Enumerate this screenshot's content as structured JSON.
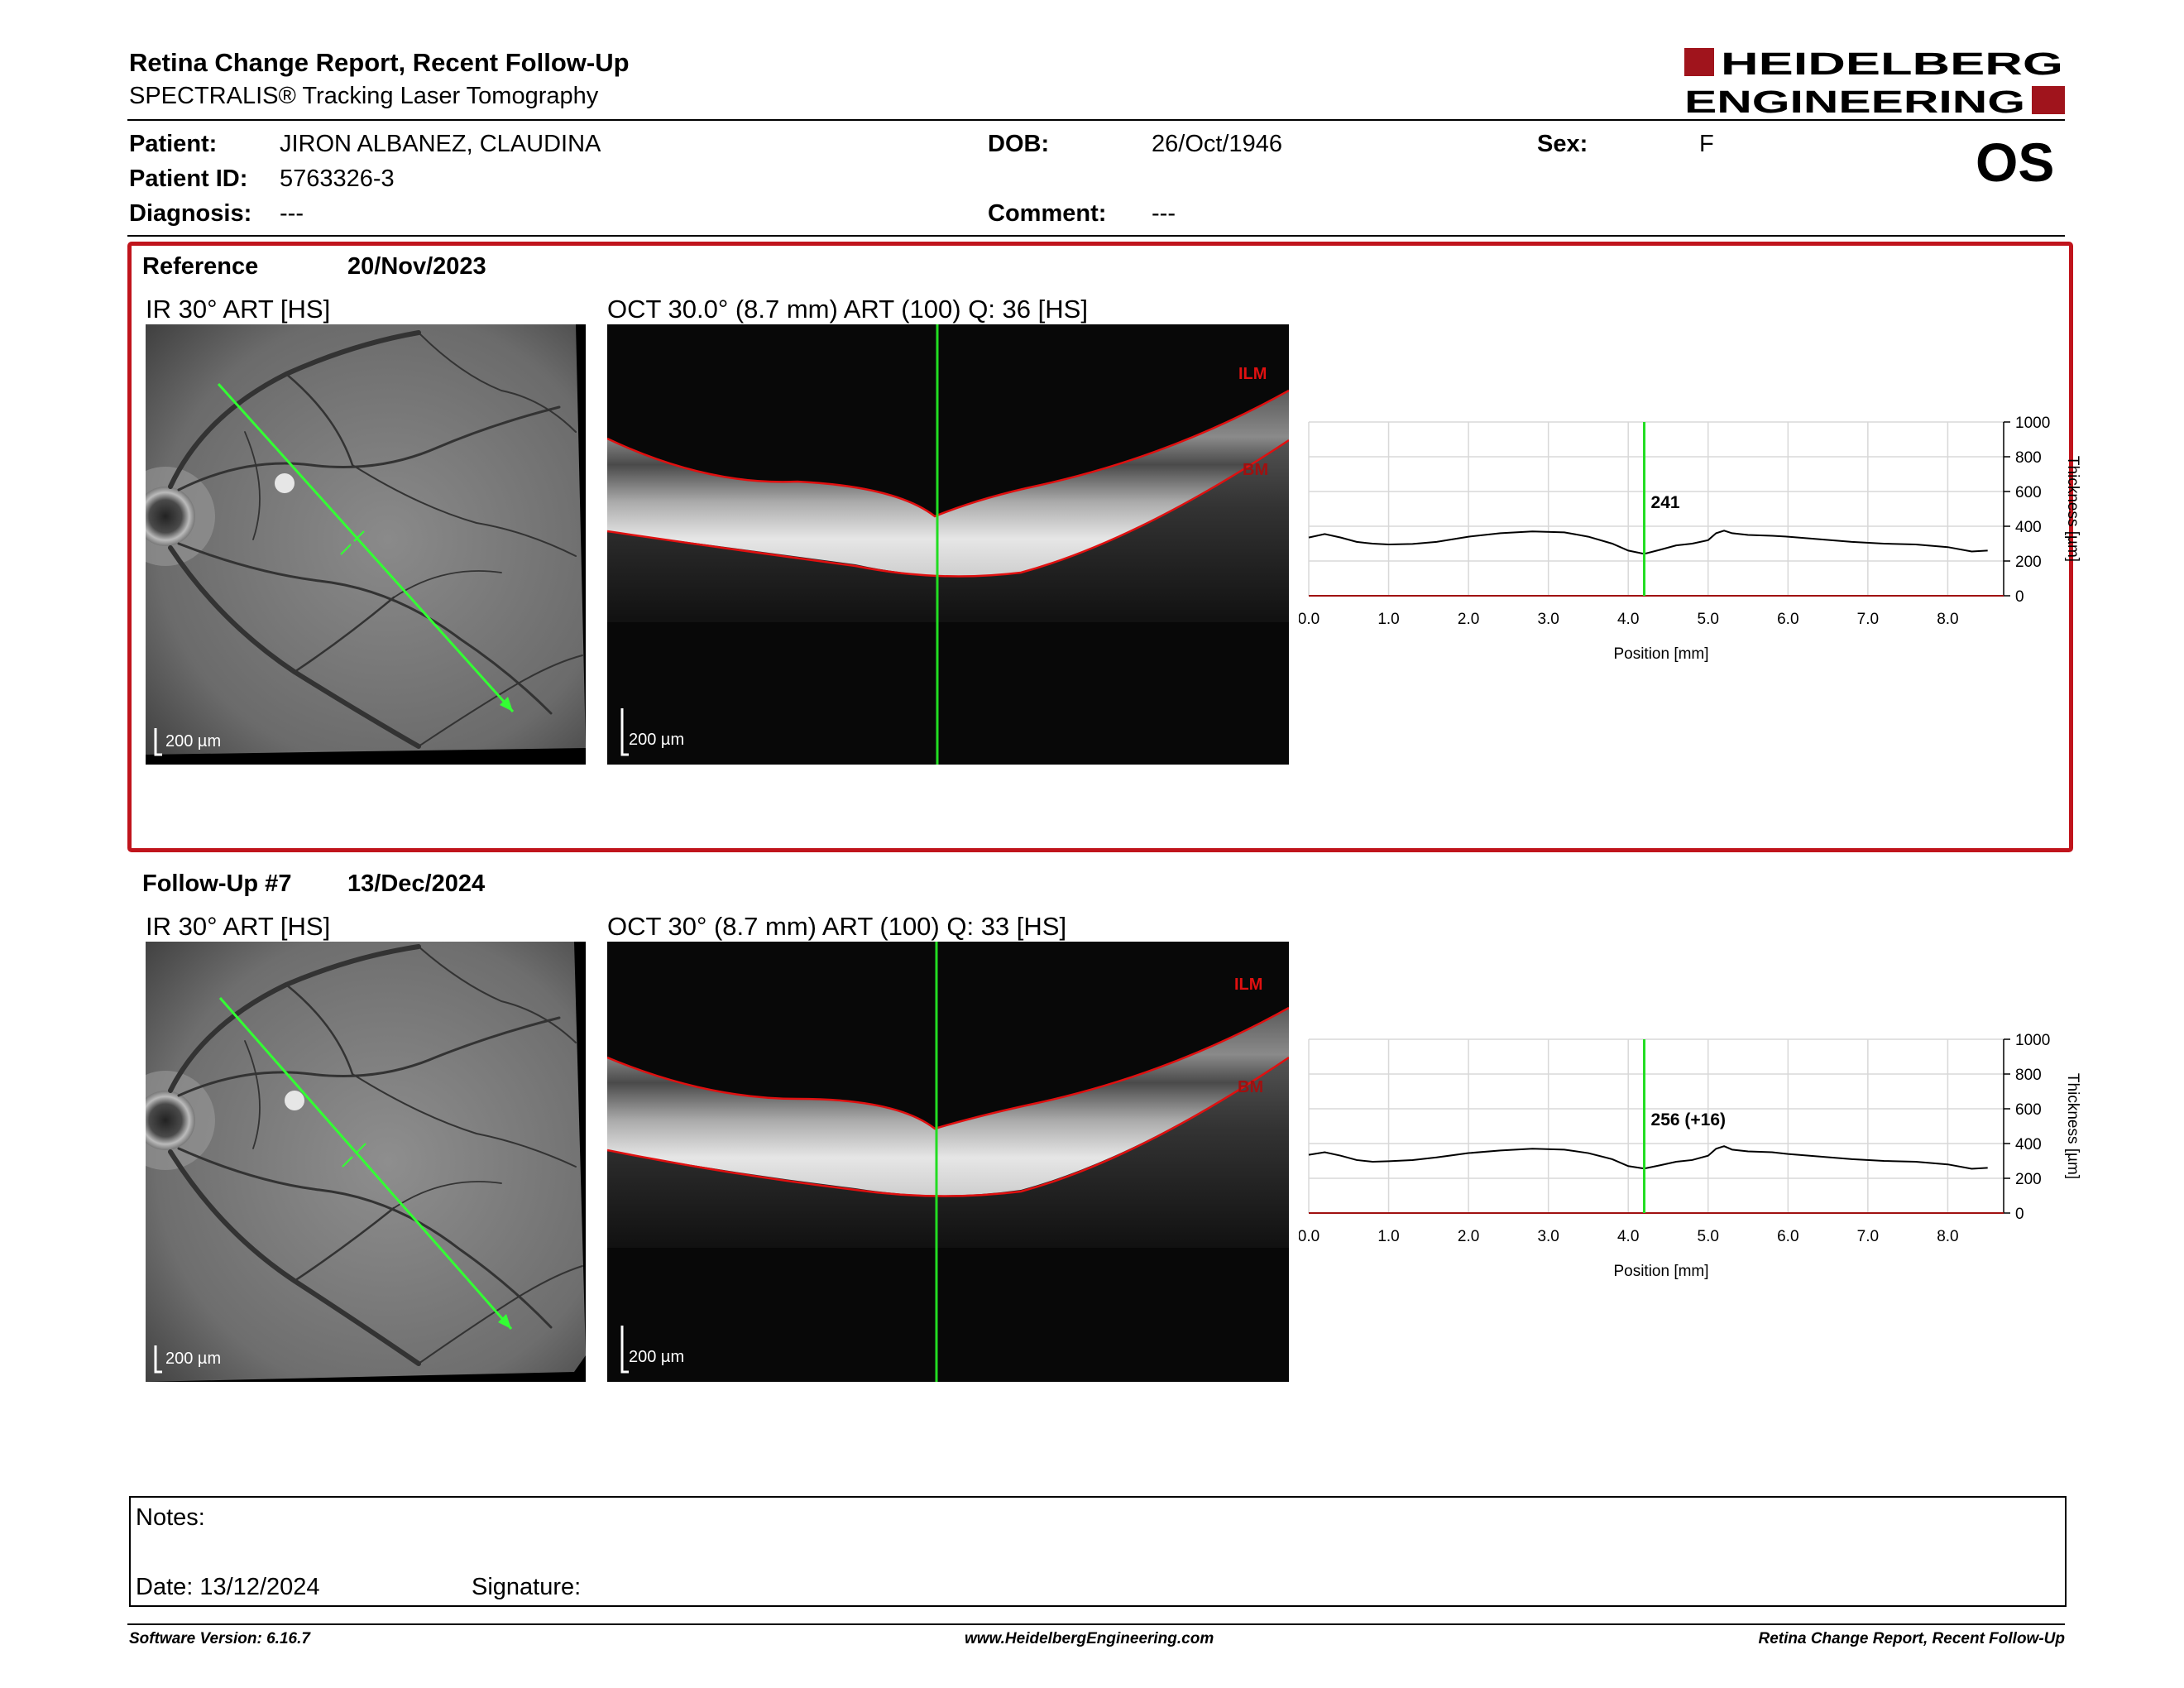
{
  "header": {
    "title": "Retina Change Report, Recent Follow-Up",
    "subtitle": "SPECTRALIS® Tracking Laser Tomography",
    "logo_line1": "HEIDELBERG",
    "logo_line2": "ENGINEERING",
    "eye": "OS"
  },
  "patient": {
    "patient_label": "Patient:",
    "patient_value": "JIRON ALBANEZ, CLAUDINA",
    "dob_label": "DOB:",
    "dob_value": "26/Oct/1946",
    "sex_label": "Sex:",
    "sex_value": "F",
    "id_label": "Patient ID:",
    "id_value": "5763326-3",
    "diag_label": "Diagnosis:",
    "diag_value": "---",
    "comment_label": "Comment:",
    "comment_value": "---"
  },
  "reference": {
    "label": "Reference",
    "date": "20/Nov/2023",
    "ir_label": "IR 30° ART [HS]",
    "oct_label": "OCT 30.0° (8.7 mm) ART (100) Q: 36 [HS]",
    "scale_label": "200 µm",
    "ilm": "ILM",
    "bm": "BM"
  },
  "followup": {
    "label": "Follow-Up #7",
    "date": "13/Dec/2024",
    "ir_label": "IR 30° ART [HS]",
    "oct_label": "OCT 30° (8.7 mm) ART (100) Q: 33 [HS]",
    "scale_label": "200 µm",
    "ilm": "ILM",
    "bm": "BM"
  },
  "chart_data": [
    {
      "type": "line",
      "xlabel": "Position [mm]",
      "ylabel": "Thickness [µm]",
      "xlim": [
        0,
        8.7
      ],
      "ylim": [
        0,
        1000
      ],
      "x_ticks": [
        "0.0",
        "1.0",
        "2.0",
        "3.0",
        "4.0",
        "5.0",
        "6.0",
        "7.0",
        "8.0"
      ],
      "y_ticks": [
        "0",
        "200",
        "400",
        "600",
        "800",
        "1000"
      ],
      "cursor_x": 4.2,
      "cursor_label": "241",
      "series": [
        {
          "x": [
            0,
            0.2,
            0.4,
            0.6,
            0.8,
            1.0,
            1.3,
            1.6,
            2.0,
            2.4,
            2.8,
            3.2,
            3.5,
            3.8,
            4.0,
            4.2,
            4.4,
            4.6,
            4.8,
            5.0,
            5.1,
            5.2,
            5.3,
            5.5,
            5.8,
            6.0,
            6.4,
            6.8,
            7.2,
            7.6,
            8.0,
            8.3,
            8.5
          ],
          "y": [
            335,
            355,
            335,
            310,
            300,
            295,
            298,
            310,
            340,
            360,
            370,
            365,
            340,
            300,
            260,
            241,
            265,
            290,
            300,
            320,
            360,
            375,
            360,
            350,
            345,
            340,
            325,
            310,
            300,
            295,
            280,
            255,
            260
          ]
        }
      ]
    },
    {
      "type": "line",
      "xlabel": "Position [mm]",
      "ylabel": "Thickness [µm]",
      "xlim": [
        0,
        8.7
      ],
      "ylim": [
        0,
        1000
      ],
      "x_ticks": [
        "0.0",
        "1.0",
        "2.0",
        "3.0",
        "4.0",
        "5.0",
        "6.0",
        "7.0",
        "8.0"
      ],
      "y_ticks": [
        "0",
        "200",
        "400",
        "600",
        "800",
        "1000"
      ],
      "cursor_x": 4.2,
      "cursor_label": "256 (+16)",
      "series": [
        {
          "x": [
            0,
            0.2,
            0.4,
            0.6,
            0.8,
            1.0,
            1.3,
            1.6,
            2.0,
            2.4,
            2.8,
            3.2,
            3.5,
            3.8,
            4.0,
            4.2,
            4.4,
            4.6,
            4.8,
            5.0,
            5.1,
            5.2,
            5.3,
            5.5,
            5.8,
            6.0,
            6.4,
            6.8,
            7.2,
            7.6,
            8.0,
            8.3,
            8.5
          ],
          "y": [
            335,
            350,
            330,
            305,
            295,
            298,
            305,
            320,
            345,
            360,
            370,
            365,
            345,
            310,
            270,
            256,
            275,
            295,
            305,
            330,
            370,
            385,
            365,
            355,
            350,
            340,
            325,
            310,
            300,
            295,
            280,
            255,
            260
          ]
        }
      ]
    }
  ],
  "notes": {
    "notes_label": "Notes:",
    "date_label": "Date: 13/12/2024",
    "signature_label": "Signature:"
  },
  "footer": {
    "version": "Software Version: 6.16.7",
    "url": "www.HeidelbergEngineering.com",
    "report": "Retina Change Report, Recent Follow-Up"
  }
}
